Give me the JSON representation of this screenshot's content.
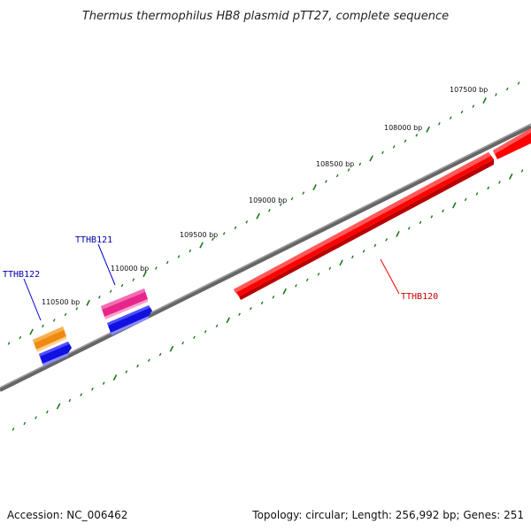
{
  "title": "Thermus thermophilus HB8 plasmid pTT27, complete sequence",
  "footer": {
    "accession": "Accession: NC_006462",
    "summary": "Topology: circular; Length: 256,992 bp; Genes: 251"
  },
  "scale_labels": [
    "107500 bp",
    "108000 bp",
    "108500 bp",
    "109000 bp",
    "109500 bp",
    "110000 bp",
    "110500 bp"
  ],
  "genes": [
    {
      "name": "TTHB120",
      "color": "#cc0000"
    },
    {
      "name": "TTHB121",
      "color": "#0000aa"
    },
    {
      "name": "TTHB122",
      "color": "#0000aa"
    }
  ],
  "colors": {
    "backbone": "#808080",
    "ticks": "#1a7a1a",
    "red_gene": "#ff0000",
    "pink_gene": "#e8258a",
    "orange_gene": "#f08a10",
    "blue_gene": "#1010e0"
  }
}
